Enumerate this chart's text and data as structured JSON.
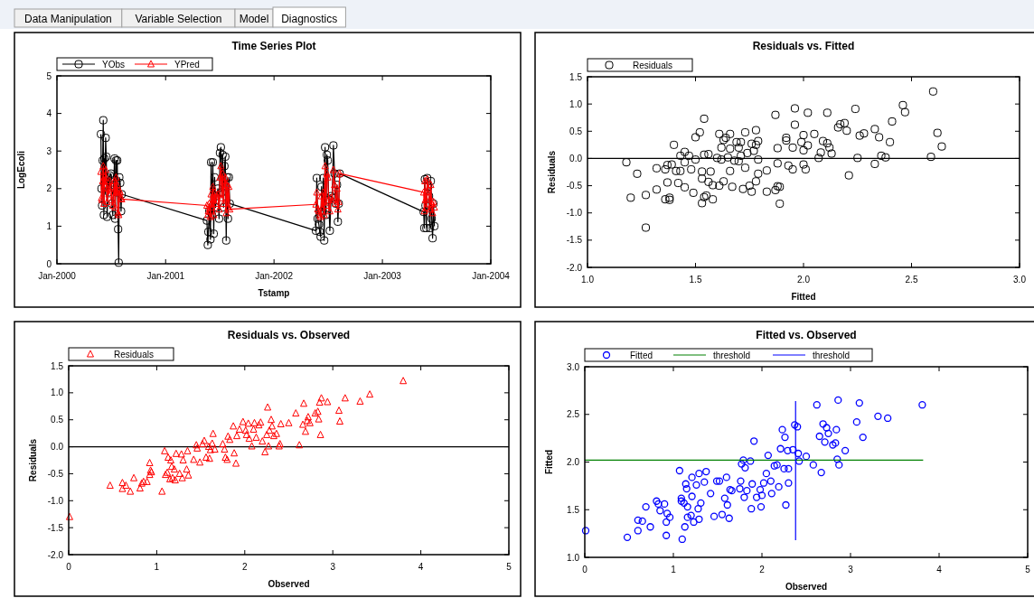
{
  "chart_data": [
    {
      "type": "other",
      "annotations": [
        "Data Manipulation",
        "Variable Selection",
        "Model",
        "Diagnostics"
      ]
    },
    {
      "type": "line",
      "title": "Time Series Plot",
      "xlabel": "Tstamp",
      "ylabel": "LogEcoli",
      "legend": "top left",
      "x": [
        "2000-05-28",
        "2000-05-30",
        "2000-06-01",
        "2000-06-03",
        "2000-06-05",
        "2000-06-07",
        "2000-06-09",
        "2000-06-11",
        "2000-06-13",
        "2000-06-15",
        "2000-06-18",
        "2000-06-21",
        "2000-06-24",
        "2000-06-27",
        "2000-07-01",
        "2000-07-04",
        "2000-07-07",
        "2000-07-10",
        "2000-07-13",
        "2000-07-15",
        "2000-07-18",
        "2000-07-20",
        "2000-07-22",
        "2000-07-25",
        "2000-07-27",
        "2000-07-29",
        "2000-08-01",
        "2000-08-04",
        "2000-08-06",
        "2001-05-20",
        "2001-05-23",
        "2001-05-25",
        "2001-05-28",
        "2001-06-01",
        "2001-06-03",
        "2001-06-06",
        "2001-06-09",
        "2001-06-12",
        "2001-06-15",
        "2001-06-18",
        "2001-06-22",
        "2001-06-26",
        "2001-06-30",
        "2001-07-03",
        "2001-07-06",
        "2001-07-09",
        "2001-07-12",
        "2001-07-15",
        "2001-07-18",
        "2001-07-21",
        "2001-07-24",
        "2001-07-27",
        "2001-07-30",
        "2001-08-02",
        "2001-08-05",
        "2002-05-22",
        "2002-05-25",
        "2002-05-28",
        "2002-06-01",
        "2002-06-04",
        "2002-06-07",
        "2002-06-10",
        "2002-06-13",
        "2002-06-16",
        "2002-06-19",
        "2002-06-22",
        "2002-06-25",
        "2002-06-28",
        "2002-07-01",
        "2002-07-04",
        "2002-07-08",
        "2002-07-12",
        "2002-07-16",
        "2002-07-20",
        "2002-07-24",
        "2002-07-28",
        "2002-08-01",
        "2002-08-04",
        "2002-08-07",
        "2002-08-10",
        "2003-05-20",
        "2003-05-22",
        "2003-05-24",
        "2003-05-26",
        "2003-05-29",
        "2003-06-01",
        "2003-06-04",
        "2003-06-07",
        "2003-06-10",
        "2003-06-13",
        "2003-06-16",
        "2003-06-19",
        "2003-06-22",
        "2003-06-25"
      ],
      "series": [
        {
          "name": "YObs",
          "color": "#000000",
          "marker": "square",
          "values": [
            3.45,
            2.0,
            1.55,
            2.75,
            3.82,
            1.3,
            2.8,
            2.3,
            3.35,
            2.85,
            1.25,
            2.3,
            1.9,
            2.35,
            2.4,
            1.6,
            1.3,
            2.1,
            2.8,
            1.2,
            2.75,
            1.9,
            2.75,
            0.92,
            0.03,
            2.3,
            2.15,
            1.4,
            1.85,
            1.15,
            0.5,
            0.85,
            1.4,
            0.65,
            2.7,
            1.3,
            2.7,
            0.8,
            2.3,
            1.5,
            1.8,
            2.0,
            1.2,
            2.95,
            3.1,
            1.9,
            2.9,
            1.5,
            2.6,
            2.85,
            0.62,
            2.3,
            1.2,
            2.3,
            1.6,
            0.88,
            2.28,
            1.2,
            1.05,
            0.85,
            0.72,
            2.05,
            1.4,
            2.28,
            0.62,
            3.1,
            1.3,
            2.9,
            2.75,
            1.7,
            0.88,
            1.8,
            1.75,
            3.15,
            2.4,
            1.6,
            2.1,
            1.12,
            1.6,
            2.4,
            1.38,
            0.95,
            2.25,
            1.55,
            0.95,
            2.28,
            2.05,
            1.8,
            0.95,
            2.2,
            1.2,
            0.68,
            1.6,
            1.0
          ]
        },
        {
          "name": "YPred",
          "color": "#ff0000",
          "marker": "triangle",
          "values": [
            2.45,
            1.75,
            1.7,
            2.2,
            2.6,
            1.6,
            2.3,
            2.1,
            2.5,
            2.3,
            1.65,
            2.0,
            1.85,
            2.2,
            2.05,
            1.7,
            1.55,
            1.9,
            2.2,
            1.5,
            2.3,
            1.9,
            2.1,
            1.35,
            1.3,
            1.95,
            1.9,
            1.75,
            1.72,
            1.55,
            1.3,
            1.4,
            1.6,
            1.25,
            1.85,
            1.5,
            2.05,
            1.3,
            1.9,
            1.6,
            1.8,
            1.85,
            1.45,
            2.3,
            2.6,
            1.75,
            2.4,
            1.6,
            2.2,
            2.3,
            1.35,
            2.1,
            1.5,
            2.05,
            1.45,
            1.58,
            1.9,
            1.45,
            1.4,
            1.3,
            1.25,
            1.8,
            1.5,
            1.9,
            1.3,
            2.6,
            1.55,
            2.4,
            2.3,
            1.7,
            1.4,
            1.75,
            1.7,
            2.5,
            2.1,
            1.6,
            2.0,
            1.45,
            1.65,
            2.4,
            1.9,
            1.4,
            2.2,
            1.7,
            1.5,
            2.25,
            2.0,
            1.8,
            1.45,
            2.1,
            1.6,
            1.35,
            1.65,
            1.5
          ]
        }
      ],
      "xlim": [
        "2000-01",
        "2004-01"
      ],
      "xticks": [
        {
          "value": "2000-01",
          "label": "Jan-2000"
        },
        {
          "value": "2001-01",
          "label": "Jan-2001"
        },
        {
          "value": "2002-01",
          "label": "Jan-2002"
        },
        {
          "value": "2003-01",
          "label": "Jan-2003"
        },
        {
          "value": "2004-01",
          "label": "Jan-2004"
        }
      ],
      "ylim": [
        0,
        5
      ],
      "yticks": [
        0,
        1,
        2,
        3,
        4,
        5
      ]
    },
    {
      "type": "scatter",
      "title": "Residuals vs. Fitted",
      "xlabel": "Fitted",
      "ylabel": "Residuals",
      "legend": "top left",
      "series": [
        {
          "name": "Residuals",
          "color": "#000000",
          "marker": "square",
          "x": [
            1.18,
            1.2,
            1.23,
            1.27,
            1.27,
            1.32,
            1.32,
            1.36,
            1.36,
            1.37,
            1.37,
            1.38,
            1.38,
            1.39,
            1.4,
            1.41,
            1.42,
            1.43,
            1.43,
            1.45,
            1.45,
            1.45,
            1.47,
            1.48,
            1.49,
            1.5,
            1.5,
            1.52,
            1.53,
            1.53,
            1.53,
            1.54,
            1.54,
            1.54,
            1.55,
            1.56,
            1.56,
            1.57,
            1.58,
            1.58,
            1.6,
            1.61,
            1.61,
            1.62,
            1.62,
            1.63,
            1.63,
            1.64,
            1.65,
            1.66,
            1.66,
            1.66,
            1.67,
            1.68,
            1.69,
            1.7,
            1.7,
            1.71,
            1.71,
            1.72,
            1.73,
            1.73,
            1.74,
            1.75,
            1.76,
            1.76,
            1.77,
            1.78,
            1.78,
            1.78,
            1.79,
            1.79,
            1.79,
            1.83,
            1.83,
            1.87,
            1.87,
            1.88,
            1.88,
            1.88,
            1.89,
            1.89,
            1.92,
            1.92,
            1.93,
            1.95,
            1.95,
            1.96,
            1.96,
            1.99,
            2.0,
            2.0,
            2.0,
            2.01,
            2.02,
            2.02,
            2.05,
            2.07,
            2.08,
            2.09,
            2.11,
            2.11,
            2.12,
            2.13,
            2.16,
            2.17,
            2.19,
            2.2,
            2.21,
            2.24,
            2.25,
            2.26,
            2.28,
            2.33,
            2.33,
            2.35,
            2.36,
            2.38,
            2.4,
            2.41,
            2.46,
            2.47,
            2.59,
            2.6,
            2.62,
            2.64
          ],
          "values": [
            -0.07,
            -0.72,
            -0.28,
            -0.67,
            -1.27,
            -0.18,
            -0.57,
            -0.2,
            -0.75,
            -0.12,
            -0.44,
            -0.72,
            -0.76,
            -0.11,
            0.25,
            -0.23,
            -0.45,
            0.05,
            -0.23,
            0.12,
            -0.07,
            -0.53,
            0.05,
            -0.2,
            -0.63,
            0.39,
            -0.02,
            0.48,
            -0.24,
            -0.37,
            -0.82,
            0.07,
            0.73,
            -0.71,
            -0.68,
            0.08,
            -0.43,
            -0.24,
            -0.49,
            -0.75,
            0.01,
            0.45,
            -0.5,
            0.2,
            -0.02,
            -0.42,
            0.34,
            0.38,
            0.02,
            0.45,
            -0.23,
            0.18,
            -0.52,
            -0.04,
            0.3,
            -0.05,
            0.2,
            0.3,
            0.05,
            -0.56,
            0.48,
            -0.17,
            0.1,
            -0.5,
            0.27,
            -0.61,
            0.14,
            0.52,
            -0.42,
            0.25,
            0.32,
            -0.28,
            -0.02,
            -0.22,
            -0.61,
            -0.58,
            0.8,
            0.19,
            -0.09,
            -0.51,
            -0.52,
            -0.83,
            0.38,
            0.33,
            -0.13,
            -0.2,
            0.2,
            0.92,
            0.62,
            0.3,
            0.43,
            -0.11,
            0.15,
            -0.2,
            0.84,
            0.24,
            0.45,
            0.01,
            0.11,
            0.32,
            0.84,
            0.28,
            0.2,
            0.09,
            0.57,
            0.63,
            0.65,
            0.51,
            -0.31,
            0.91,
            0.01,
            0.42,
            0.46,
            0.54,
            -0.1,
            0.39,
            0.05,
            0.02,
            0.3,
            0.68,
            0.98,
            0.85,
            0.03,
            1.23,
            0.47,
            0.22
          ]
        }
      ],
      "ref_lines": [
        {
          "axis": "y",
          "value": 0,
          "color": "#000000"
        }
      ],
      "xlim": [
        1,
        3
      ],
      "xticks": [
        {
          "value": 1,
          "label": "1.0"
        },
        {
          "value": 1.5,
          "label": "1.5"
        },
        {
          "value": 2,
          "label": "2.0"
        },
        {
          "value": 2.5,
          "label": "2.5"
        },
        {
          "value": 3,
          "label": "3.0"
        }
      ],
      "ylim": [
        -2,
        1.5
      ],
      "yticks": [
        {
          "value": -2,
          "label": "-2.0"
        },
        {
          "value": -1.5,
          "label": "-1.5"
        },
        {
          "value": -1,
          "label": "-1.0"
        },
        {
          "value": -0.5,
          "label": "-0.5"
        },
        {
          "value": 0,
          "label": "0.0"
        },
        {
          "value": 0.5,
          "label": "0.5"
        },
        {
          "value": 1,
          "label": "1.0"
        },
        {
          "value": 1.5,
          "label": "1.5"
        }
      ]
    },
    {
      "type": "scatter",
      "title": "Residuals vs. Observed",
      "xlabel": "Observed",
      "ylabel": "Residuals",
      "legend": "top left",
      "series": [
        {
          "name": "Residuals",
          "color": "#ff0000",
          "marker": "triangle",
          "x": [
            0.01,
            0.47,
            0.61,
            0.61,
            0.65,
            0.7,
            0.74,
            0.81,
            0.83,
            0.85,
            0.89,
            0.92,
            0.92,
            0.93,
            0.94,
            1.06,
            1.09,
            1.1,
            1.12,
            1.13,
            1.15,
            1.16,
            1.17,
            1.18,
            1.2,
            1.21,
            1.22,
            1.26,
            1.28,
            1.29,
            1.3,
            1.34,
            1.35,
            1.36,
            1.42,
            1.45,
            1.46,
            1.49,
            1.52,
            1.54,
            1.56,
            1.59,
            1.6,
            1.61,
            1.63,
            1.64,
            1.66,
            1.75,
            1.77,
            1.78,
            1.8,
            1.81,
            1.83,
            1.87,
            1.88,
            1.9,
            1.91,
            1.94,
            1.98,
            2.01,
            2.02,
            2.04,
            2.05,
            2.08,
            2.1,
            2.11,
            2.13,
            2.16,
            2.18,
            2.2,
            2.23,
            2.25,
            2.26,
            2.27,
            2.28,
            2.3,
            2.31,
            2.33,
            2.36,
            2.39,
            2.4,
            2.41,
            2.5,
            2.58,
            2.62,
            2.66,
            2.67,
            2.69,
            2.71,
            2.72,
            2.74,
            2.8,
            2.83,
            2.84,
            2.85,
            2.86,
            2.87,
            2.94,
            3.07,
            3.08,
            3.14,
            3.31,
            3.42,
            3.8
          ],
          "values": [
            -1.3,
            -0.72,
            -0.67,
            -0.78,
            -0.72,
            -0.83,
            -0.58,
            -0.77,
            -0.68,
            -0.65,
            -0.65,
            -0.3,
            -0.52,
            -0.44,
            -0.47,
            -0.83,
            -0.08,
            -0.52,
            -0.48,
            -0.2,
            -0.6,
            -0.25,
            -0.37,
            -0.58,
            -0.42,
            -0.62,
            -0.13,
            -0.5,
            -0.14,
            -0.58,
            -0.25,
            -0.42,
            -0.08,
            -0.53,
            -0.24,
            0.03,
            -0.03,
            -0.29,
            0.05,
            0.11,
            -0.2,
            0.0,
            -0.22,
            -0.06,
            0.06,
            0.24,
            -0.05,
            0.05,
            -0.05,
            -0.2,
            -0.24,
            0.19,
            0.13,
            0.38,
            -0.12,
            -0.31,
            0.2,
            0.32,
            0.46,
            0.3,
            0.22,
            0.43,
            0.15,
            0.01,
            0.32,
            0.44,
            0.17,
            0.4,
            0.45,
            0.1,
            -0.1,
            0.22,
            0.73,
            0.01,
            0.3,
            0.5,
            0.38,
            0.2,
            0.24,
            0.01,
            0.05,
            0.42,
            0.44,
            0.62,
            0.03,
            0.41,
            0.8,
            0.28,
            0.48,
            0.55,
            0.44,
            0.62,
            0.65,
            0.51,
            0.82,
            0.22,
            0.9,
            0.83,
            0.67,
            0.47,
            0.9,
            0.84,
            0.97,
            1.22
          ]
        }
      ],
      "ref_lines": [
        {
          "axis": "y",
          "value": 0,
          "color": "#000000"
        }
      ],
      "xlim": [
        0,
        5
      ],
      "xticks": [
        0,
        1,
        2,
        3,
        4,
        5
      ],
      "ylim": [
        -2,
        1.5
      ],
      "yticks": [
        {
          "value": -2,
          "label": "-2.0"
        },
        {
          "value": -1.5,
          "label": "-1.5"
        },
        {
          "value": -1,
          "label": "-1.0"
        },
        {
          "value": -0.5,
          "label": "-0.5"
        },
        {
          "value": 0,
          "label": "0.0"
        },
        {
          "value": 0.5,
          "label": "0.5"
        },
        {
          "value": 1,
          "label": "1.0"
        },
        {
          "value": 1.5,
          "label": "1.5"
        }
      ]
    },
    {
      "type": "scatter",
      "title": "Fitted vs. Observed",
      "xlabel": "Observed",
      "ylabel": "Fitted",
      "legend": "top left",
      "series": [
        {
          "name": "Fitted",
          "color": "#0000ff",
          "marker": "circle",
          "x": [
            0.01,
            0.48,
            0.6,
            0.6,
            0.65,
            0.69,
            0.74,
            0.81,
            0.83,
            0.85,
            0.9,
            0.92,
            0.92,
            0.93,
            0.96,
            1.07,
            1.09,
            1.09,
            1.1,
            1.12,
            1.13,
            1.14,
            1.15,
            1.16,
            1.16,
            1.2,
            1.21,
            1.21,
            1.23,
            1.26,
            1.28,
            1.29,
            1.29,
            1.31,
            1.35,
            1.37,
            1.42,
            1.46,
            1.49,
            1.52,
            1.55,
            1.58,
            1.6,
            1.61,
            1.63,
            1.64,
            1.66,
            1.75,
            1.76,
            1.77,
            1.79,
            1.8,
            1.81,
            1.83,
            1.87,
            1.88,
            1.89,
            1.91,
            1.94,
            1.98,
            1.99,
            2.0,
            2.02,
            2.05,
            2.07,
            2.1,
            2.11,
            2.14,
            2.17,
            2.19,
            2.21,
            2.23,
            2.25,
            2.26,
            2.27,
            2.29,
            2.3,
            2.3,
            2.35,
            2.37,
            2.4,
            2.41,
            2.42,
            2.5,
            2.58,
            2.62,
            2.65,
            2.67,
            2.69,
            2.71,
            2.73,
            2.75,
            2.8,
            2.83,
            2.84,
            2.85,
            2.86,
            2.87,
            2.94,
            3.07,
            3.1,
            3.14,
            3.31,
            3.42,
            3.81
          ],
          "values": [
            1.28,
            1.21,
            1.39,
            1.28,
            1.38,
            1.53,
            1.32,
            1.59,
            1.56,
            1.49,
            1.56,
            1.37,
            1.23,
            1.46,
            1.42,
            1.91,
            1.62,
            1.59,
            1.19,
            1.57,
            1.32,
            1.77,
            1.72,
            1.53,
            1.42,
            1.44,
            1.84,
            1.64,
            1.37,
            1.76,
            1.51,
            1.4,
            1.88,
            1.57,
            1.79,
            1.9,
            1.67,
            1.43,
            1.8,
            1.8,
            1.45,
            1.62,
            1.84,
            1.55,
            1.41,
            1.71,
            1.7,
            1.72,
            1.8,
            1.98,
            2.02,
            1.63,
            1.94,
            1.7,
            2.01,
            1.51,
            1.77,
            2.22,
            1.63,
            1.71,
            1.53,
            1.65,
            1.78,
            1.88,
            2.07,
            1.8,
            1.67,
            1.96,
            1.97,
            1.74,
            2.14,
            2.34,
            1.93,
            2.26,
            1.55,
            2.12,
            1.78,
            1.93,
            2.13,
            2.39,
            2.37,
            2.09,
            2.01,
            2.06,
            1.97,
            2.6,
            2.27,
            1.89,
            2.4,
            2.21,
            2.36,
            2.3,
            2.18,
            2.2,
            2.34,
            2.03,
            2.65,
            1.97,
            2.12,
            2.42,
            2.62,
            2.26,
            2.48,
            2.46,
            2.6
          ]
        },
        {
          "name": "threshold",
          "type": "line",
          "color": "#008000",
          "marker": "none",
          "x": [
            0,
            3.82
          ],
          "values": [
            2.02,
            2.02
          ]
        },
        {
          "name": "threshold",
          "type": "line",
          "color": "#0000ff",
          "marker": "none",
          "x": [
            2.38,
            2.38
          ],
          "values": [
            1.18,
            2.64
          ]
        }
      ],
      "xlim": [
        0,
        5
      ],
      "xticks": [
        0,
        1,
        2,
        3,
        4,
        5
      ],
      "ylim": [
        1,
        3
      ],
      "yticks": [
        {
          "value": 1,
          "label": "1.0"
        },
        {
          "value": 1.5,
          "label": "1.5"
        },
        {
          "value": 2,
          "label": "2.0"
        },
        {
          "value": 2.5,
          "label": "2.5"
        },
        {
          "value": 3,
          "label": "3.0"
        }
      ]
    }
  ]
}
